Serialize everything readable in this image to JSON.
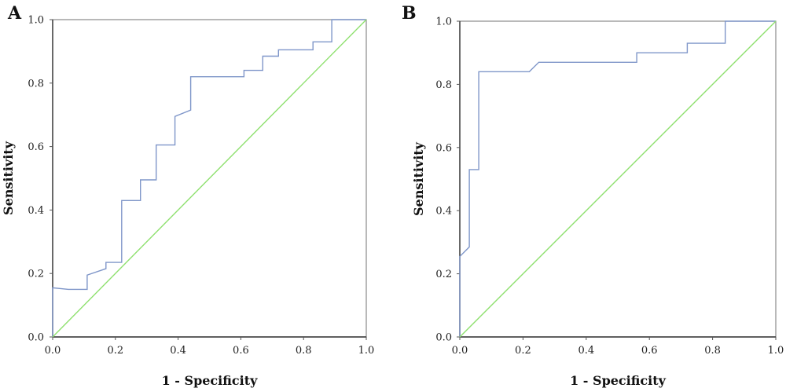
{
  "chart_data": [
    {
      "type": "line",
      "panel_label": "A",
      "xlabel": "1 - Specificity",
      "ylabel": "Sensitivity",
      "xlim": [
        0,
        1
      ],
      "ylim": [
        0,
        1
      ],
      "x_ticks": [
        "0.0",
        "0.2",
        "0.4",
        "0.6",
        "0.8",
        "1.0"
      ],
      "y_ticks": [
        "0.0",
        "0.2",
        "0.4",
        "0.6",
        "0.8",
        "1.0"
      ],
      "grid": false,
      "series": [
        {
          "color": "#7f96c9",
          "x": [
            0,
            0,
            0.05,
            0.11,
            0.11,
            0.17,
            0.17,
            0.22,
            0.22,
            0.28,
            0.28,
            0.33,
            0.33,
            0.39,
            0.39,
            0.44,
            0.44,
            0.61,
            0.61,
            0.67,
            0.67,
            0.72,
            0.72,
            0.83,
            0.83,
            0.89,
            0.89,
            1.0
          ],
          "y": [
            0,
            0.155,
            0.15,
            0.15,
            0.195,
            0.215,
            0.235,
            0.235,
            0.43,
            0.43,
            0.495,
            0.495,
            0.605,
            0.605,
            0.695,
            0.715,
            0.82,
            0.82,
            0.84,
            0.84,
            0.885,
            0.885,
            0.905,
            0.905,
            0.93,
            0.93,
            1.0,
            1.0
          ]
        },
        {
          "color": "#8ee06e",
          "x": [
            0,
            1
          ],
          "y": [
            0,
            1
          ]
        }
      ]
    },
    {
      "type": "line",
      "panel_label": "B",
      "xlabel": "1 - Specificity",
      "ylabel": "Sensitivity",
      "xlim": [
        0,
        1
      ],
      "ylim": [
        0,
        1
      ],
      "x_ticks": [
        "0.0",
        "0.2",
        "0.4",
        "0.6",
        "0.8",
        "1.0"
      ],
      "y_ticks": [
        "0.0",
        "0.2",
        "0.4",
        "0.6",
        "0.8",
        "1.0"
      ],
      "grid": false,
      "series": [
        {
          "color": "#7f96c9",
          "x": [
            0,
            0,
            0.03,
            0.03,
            0.06,
            0.06,
            0.22,
            0.25,
            0.56,
            0.56,
            0.72,
            0.72,
            0.84,
            0.84,
            1.0
          ],
          "y": [
            0,
            0.255,
            0.285,
            0.53,
            0.53,
            0.84,
            0.84,
            0.87,
            0.87,
            0.9,
            0.9,
            0.93,
            0.93,
            1.0,
            1.0
          ]
        },
        {
          "color": "#8ee06e",
          "x": [
            0,
            1
          ],
          "y": [
            0,
            1
          ]
        }
      ]
    }
  ]
}
